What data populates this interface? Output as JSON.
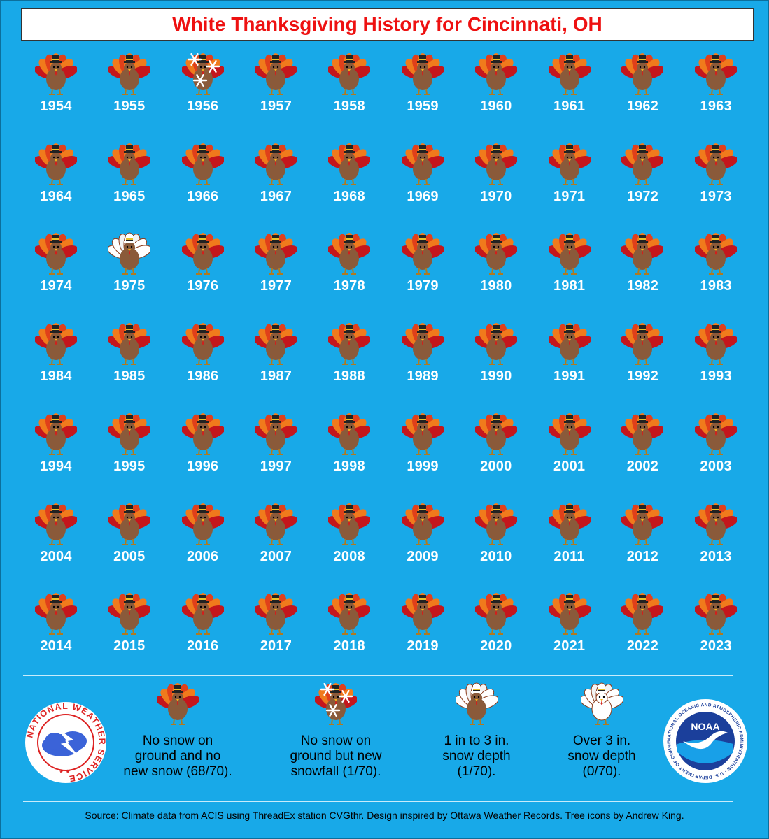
{
  "title": "White Thanksgiving History for Cincinnati, OH",
  "colors": {
    "background": "#18a9e8",
    "title_text": "#ee1111",
    "year_text": "#ffffff"
  },
  "years": [
    {
      "year": "1954",
      "category": "none"
    },
    {
      "year": "1955",
      "category": "none"
    },
    {
      "year": "1956",
      "category": "snowfall"
    },
    {
      "year": "1957",
      "category": "none"
    },
    {
      "year": "1958",
      "category": "none"
    },
    {
      "year": "1959",
      "category": "none"
    },
    {
      "year": "1960",
      "category": "none"
    },
    {
      "year": "1961",
      "category": "none"
    },
    {
      "year": "1962",
      "category": "none"
    },
    {
      "year": "1963",
      "category": "none"
    },
    {
      "year": "1964",
      "category": "none"
    },
    {
      "year": "1965",
      "category": "none"
    },
    {
      "year": "1966",
      "category": "none"
    },
    {
      "year": "1967",
      "category": "none"
    },
    {
      "year": "1968",
      "category": "none"
    },
    {
      "year": "1969",
      "category": "none"
    },
    {
      "year": "1970",
      "category": "none"
    },
    {
      "year": "1971",
      "category": "none"
    },
    {
      "year": "1972",
      "category": "none"
    },
    {
      "year": "1973",
      "category": "none"
    },
    {
      "year": "1974",
      "category": "none"
    },
    {
      "year": "1975",
      "category": "depth_1_3"
    },
    {
      "year": "1976",
      "category": "none"
    },
    {
      "year": "1977",
      "category": "none"
    },
    {
      "year": "1978",
      "category": "none"
    },
    {
      "year": "1979",
      "category": "none"
    },
    {
      "year": "1980",
      "category": "none"
    },
    {
      "year": "1981",
      "category": "none"
    },
    {
      "year": "1982",
      "category": "none"
    },
    {
      "year": "1983",
      "category": "none"
    },
    {
      "year": "1984",
      "category": "none"
    },
    {
      "year": "1985",
      "category": "none"
    },
    {
      "year": "1986",
      "category": "none"
    },
    {
      "year": "1987",
      "category": "none"
    },
    {
      "year": "1988",
      "category": "none"
    },
    {
      "year": "1989",
      "category": "none"
    },
    {
      "year": "1990",
      "category": "none"
    },
    {
      "year": "1991",
      "category": "none"
    },
    {
      "year": "1992",
      "category": "none"
    },
    {
      "year": "1993",
      "category": "none"
    },
    {
      "year": "1994",
      "category": "none"
    },
    {
      "year": "1995",
      "category": "none"
    },
    {
      "year": "1996",
      "category": "none"
    },
    {
      "year": "1997",
      "category": "none"
    },
    {
      "year": "1998",
      "category": "none"
    },
    {
      "year": "1999",
      "category": "none"
    },
    {
      "year": "2000",
      "category": "none"
    },
    {
      "year": "2001",
      "category": "none"
    },
    {
      "year": "2002",
      "category": "none"
    },
    {
      "year": "2003",
      "category": "none"
    },
    {
      "year": "2004",
      "category": "none"
    },
    {
      "year": "2005",
      "category": "none"
    },
    {
      "year": "2006",
      "category": "none"
    },
    {
      "year": "2007",
      "category": "none"
    },
    {
      "year": "2008",
      "category": "none"
    },
    {
      "year": "2009",
      "category": "none"
    },
    {
      "year": "2010",
      "category": "none"
    },
    {
      "year": "2011",
      "category": "none"
    },
    {
      "year": "2012",
      "category": "none"
    },
    {
      "year": "2013",
      "category": "none"
    },
    {
      "year": "2014",
      "category": "none"
    },
    {
      "year": "2015",
      "category": "none"
    },
    {
      "year": "2016",
      "category": "none"
    },
    {
      "year": "2017",
      "category": "none"
    },
    {
      "year": "2018",
      "category": "none"
    },
    {
      "year": "2019",
      "category": "none"
    },
    {
      "year": "2020",
      "category": "none"
    },
    {
      "year": "2021",
      "category": "none"
    },
    {
      "year": "2022",
      "category": "none"
    },
    {
      "year": "2023",
      "category": "none"
    }
  ],
  "legend": {
    "none": {
      "lines": [
        "No snow on",
        "ground and no",
        "new snow (68/70)."
      ]
    },
    "snowfall": {
      "lines": [
        "No snow on",
        "ground but new",
        "snowfall (1/70)."
      ]
    },
    "depth_1_3": {
      "lines": [
        "1 in to 3 in.",
        "snow depth",
        "(1/70)."
      ]
    },
    "depth_over_3": {
      "lines": [
        "Over 3 in.",
        "snow depth",
        "(0/70)."
      ]
    }
  },
  "logos": {
    "nws_text": "NATIONAL WEATHER SERVICE",
    "noaa_text": "NOAA",
    "noaa_ring_text": "NATIONAL OCEANIC AND ATMOSPHERIC ADMINISTRATION · U.S. DEPARTMENT OF COMMERCE"
  },
  "source": "Source: Climate data from ACIS using ThreadEx station CVGthr. Design inspired by Ottawa Weather Records. Tree icons by Andrew King."
}
